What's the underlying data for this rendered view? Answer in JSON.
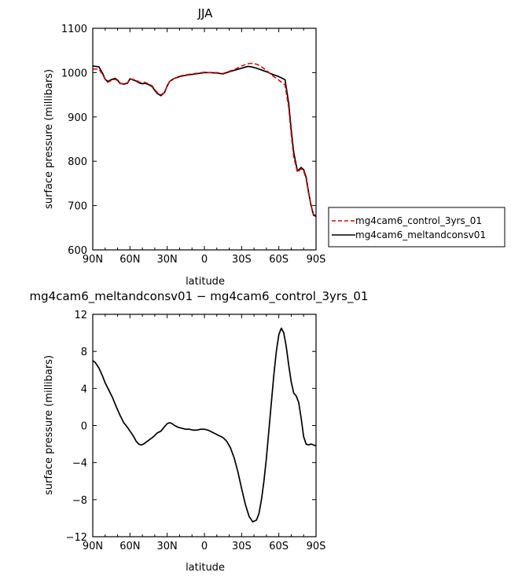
{
  "chart_data": [
    {
      "type": "line",
      "title": "JJA",
      "xlabel": "latitude",
      "ylabel": "surface pressure (millibars)",
      "xlim": [
        -90,
        90
      ],
      "ylim": [
        600,
        1100
      ],
      "xticks": [
        {
          "value": -90,
          "label": "90N"
        },
        {
          "value": -60,
          "label": "60N"
        },
        {
          "value": -30,
          "label": "30N"
        },
        {
          "value": 0,
          "label": "0"
        },
        {
          "value": 30,
          "label": "30S"
        },
        {
          "value": 60,
          "label": "60S"
        },
        {
          "value": 90,
          "label": "90S"
        }
      ],
      "yticks": [
        {
          "value": 600,
          "label": "600"
        },
        {
          "value": 700,
          "label": "700"
        },
        {
          "value": 800,
          "label": "800"
        },
        {
          "value": 900,
          "label": "900"
        },
        {
          "value": 1000,
          "label": "1000"
        },
        {
          "value": 1100,
          "label": "1100"
        }
      ],
      "grid": false,
      "legend_position": "outside-right",
      "series": [
        {
          "name": "mg4cam6_control_3yrs_01",
          "color": "#e00000",
          "dash": "dashed",
          "x": [
            -90,
            -85,
            -82,
            -80,
            -78,
            -75,
            -72,
            -70,
            -68,
            -65,
            -62,
            -60,
            -58,
            -55,
            -52,
            -50,
            -48,
            -45,
            -42,
            -40,
            -38,
            -35,
            -32,
            -30,
            -28,
            -25,
            -20,
            -15,
            -10,
            -5,
            0,
            5,
            10,
            15,
            20,
            25,
            30,
            35,
            38,
            42,
            45,
            50,
            55,
            60,
            65,
            68,
            70,
            72,
            75,
            78,
            80,
            82,
            84,
            86,
            88,
            90
          ],
          "y": [
            1008,
            1008,
            995,
            985,
            978,
            982,
            985,
            982,
            975,
            975,
            977,
            986,
            985,
            983,
            978,
            977,
            978,
            975,
            970,
            962,
            955,
            950,
            956,
            970,
            980,
            986,
            992,
            995,
            997,
            999,
            1001,
            1000,
            1000,
            998,
            1003,
            1008,
            1015,
            1020,
            1021,
            1019,
            1015,
            1005,
            993,
            983,
            972,
            920,
            860,
            810,
            775,
            783,
            778,
            760,
            728,
            700,
            680,
            678
          ]
        },
        {
          "name": "mg4cam6_meltandconsv01",
          "color": "#000000",
          "dash": "solid",
          "x": [
            -90,
            -85,
            -82,
            -80,
            -78,
            -75,
            -72,
            -70,
            -68,
            -65,
            -62,
            -60,
            -58,
            -55,
            -52,
            -50,
            -48,
            -45,
            -42,
            -40,
            -38,
            -35,
            -32,
            -30,
            -28,
            -25,
            -20,
            -15,
            -10,
            -5,
            0,
            5,
            10,
            15,
            20,
            25,
            30,
            35,
            38,
            42,
            45,
            50,
            55,
            60,
            65,
            68,
            70,
            72,
            75,
            78,
            80,
            82,
            84,
            86,
            88,
            90
          ],
          "y": [
            1015,
            1013,
            998,
            985,
            980,
            984,
            987,
            983,
            976,
            974,
            976,
            986,
            984,
            981,
            976,
            975,
            976,
            973,
            968,
            960,
            953,
            948,
            956,
            970,
            980,
            986,
            991,
            994,
            996,
            998,
            1000,
            1000,
            999,
            997,
            1002,
            1006,
            1010,
            1014,
            1013,
            1010,
            1007,
            1002,
            996,
            991,
            984,
            930,
            870,
            820,
            778,
            786,
            781,
            764,
            730,
            700,
            678,
            676
          ]
        }
      ]
    },
    {
      "type": "line",
      "title": "mg4cam6_meltandconsv01 − mg4cam6_control_3yrs_01",
      "xlabel": "latitude",
      "ylabel": "surface pressure (millibars)",
      "xlim": [
        -90,
        90
      ],
      "ylim": [
        -12,
        12
      ],
      "xticks": [
        {
          "value": -90,
          "label": "90N"
        },
        {
          "value": -60,
          "label": "60N"
        },
        {
          "value": -30,
          "label": "30N"
        },
        {
          "value": 0,
          "label": "0"
        },
        {
          "value": 30,
          "label": "30S"
        },
        {
          "value": 60,
          "label": "60S"
        },
        {
          "value": 90,
          "label": "90S"
        }
      ],
      "yticks": [
        {
          "value": -12,
          "label": "−12"
        },
        {
          "value": -8,
          "label": "−8"
        },
        {
          "value": -4,
          "label": "−4"
        },
        {
          "value": 0,
          "label": "0"
        },
        {
          "value": 4,
          "label": "4"
        },
        {
          "value": 8,
          "label": "8"
        },
        {
          "value": 12,
          "label": "12"
        }
      ],
      "grid": false,
      "series": [
        {
          "color": "#000000",
          "dash": "solid",
          "x": [
            -90,
            -88,
            -85,
            -82,
            -80,
            -77,
            -74,
            -71,
            -68,
            -65,
            -62,
            -60,
            -57,
            -55,
            -53,
            -51,
            -49,
            -47,
            -44,
            -41,
            -38,
            -35,
            -32,
            -30,
            -28,
            -26,
            -24,
            -21,
            -18,
            -15,
            -12,
            -9,
            -6,
            -3,
            0,
            3,
            6,
            9,
            12,
            15,
            18,
            21,
            24,
            27,
            30,
            33,
            36,
            39,
            42,
            44,
            46,
            48,
            50,
            52,
            54,
            56,
            58,
            60,
            62,
            64,
            66,
            68,
            70,
            72,
            74,
            76,
            78,
            80,
            82,
            84,
            86,
            88,
            90
          ],
          "y": [
            7.0,
            6.8,
            6.2,
            5.3,
            4.6,
            3.8,
            3.0,
            2.0,
            1.1,
            0.3,
            -0.2,
            -0.6,
            -1.2,
            -1.7,
            -2.0,
            -2.1,
            -2.0,
            -1.8,
            -1.5,
            -1.2,
            -0.8,
            -0.6,
            -0.1,
            0.2,
            0.3,
            0.2,
            0.0,
            -0.2,
            -0.3,
            -0.4,
            -0.4,
            -0.5,
            -0.5,
            -0.4,
            -0.4,
            -0.5,
            -0.7,
            -0.9,
            -1.1,
            -1.3,
            -1.7,
            -2.4,
            -3.5,
            -5.0,
            -6.8,
            -8.5,
            -9.8,
            -10.4,
            -10.2,
            -9.5,
            -8.0,
            -6.0,
            -3.5,
            -0.5,
            2.5,
            5.5,
            8.0,
            9.8,
            10.5,
            10.0,
            8.5,
            6.5,
            4.7,
            3.5,
            3.2,
            2.5,
            0.8,
            -1.2,
            -2.0,
            -2.1,
            -2.0,
            -2.1,
            -2.2
          ]
        }
      ]
    }
  ]
}
